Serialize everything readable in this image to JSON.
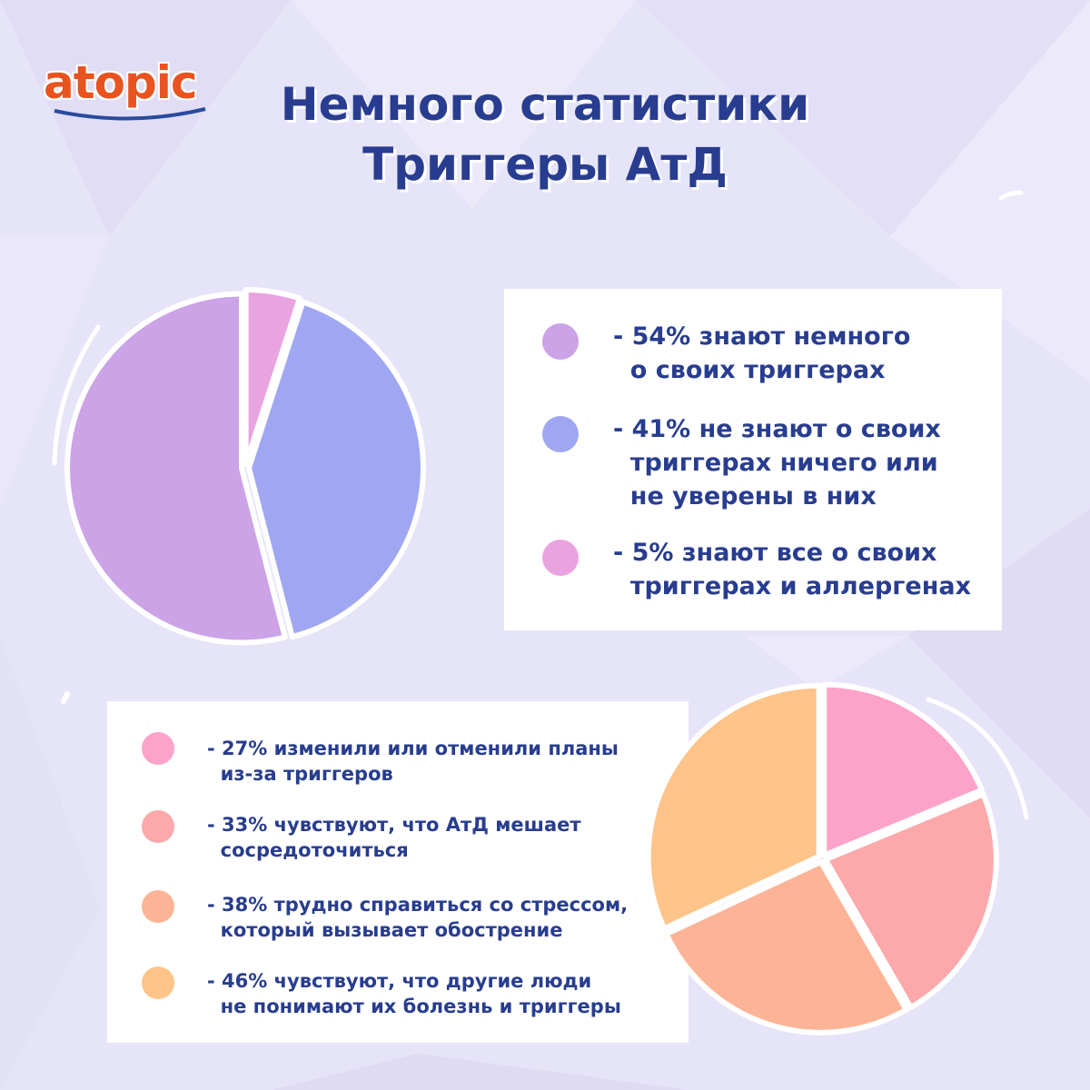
{
  "brand": {
    "logo_text": "atopic",
    "logo_color": "#e8531f"
  },
  "title": {
    "line1": "Немного статистики",
    "line2": "Триггеры АтД",
    "color": "#283d8f"
  },
  "chart_data": [
    {
      "type": "pie",
      "slices": [
        {
          "label": "- 54% знают немного\n  о своих триггерах",
          "value": 54,
          "color": "#cba3e6"
        },
        {
          "label": "- 41% не знают о своих\n  триггерах ничего или\n  не уверены в них",
          "value": 41,
          "color": "#a0a7f2"
        },
        {
          "label": "- 5% знают все о своих\n  триггерах и аллергенах",
          "value": 5,
          "color": "#e9a4e0"
        }
      ]
    },
    {
      "type": "pie",
      "slices": [
        {
          "label": "- 27% изменили или отменили планы\n  из-за триггеров",
          "value": 27,
          "color": "#fda3c9"
        },
        {
          "label": "- 33% чувствуют, что АтД мешает\n  сосредоточиться",
          "value": 33,
          "color": "#fda8ab"
        },
        {
          "label": "- 38% трудно справиться со стрессом,\n  который вызывает обострение",
          "value": 38,
          "color": "#fdb496"
        },
        {
          "label": "- 46% чувствуют, что другие люди\n  не понимают их болезнь и триггеры",
          "value": 46,
          "color": "#fec48a"
        }
      ]
    }
  ]
}
